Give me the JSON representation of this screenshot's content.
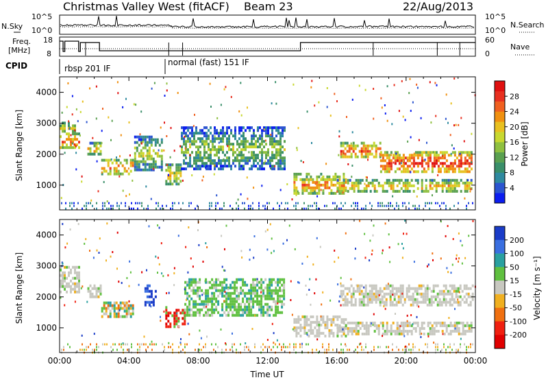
{
  "header": {
    "station": "Christmas Valley West (fitACF)",
    "beam": "Beam 23",
    "date": "22/Aug/2013"
  },
  "summary_panels": {
    "nsky_label": "N.Sky",
    "nsearch_label": "N.Search",
    "noise_ticks": [
      "10^5",
      "10^0"
    ],
    "noise_ticks_right": [
      "10^5",
      "10^0"
    ],
    "freq_label_line1": "Freq.",
    "freq_label_line2": "[MHz]",
    "freq_ticks": [
      "18",
      "8"
    ],
    "nave_label": "Nave",
    "nave_ticks": [
      "60",
      "0"
    ],
    "cpid_label": "CPID",
    "cpid_segments": [
      "rbsp 201 IF",
      "normal (fast) 151 IF"
    ]
  },
  "chart_data": [
    {
      "type": "heatmap",
      "name": "power",
      "ylabel": "Slant Range [km]",
      "yticks": [
        1000,
        2000,
        3000,
        4000
      ],
      "ylim": [
        200,
        4500
      ],
      "colorbar_label": "Power [dB]",
      "colorbar_ticks": [
        4,
        8,
        12,
        16,
        20,
        24,
        28
      ],
      "colorbar_colors": [
        "#0b1df0",
        "#2b55d0",
        "#2f8aa0",
        "#3a8f6a",
        "#5aa050",
        "#8fc040",
        "#c8d830",
        "#e8c020",
        "#f09010",
        "#f06020",
        "#e83020",
        "#e01010"
      ],
      "bands": [
        {
          "t0": 0.0,
          "t1": 1.1,
          "r0": 2200,
          "r1": 2700,
          "level": 0.55
        },
        {
          "t0": 0.0,
          "t1": 0.9,
          "r0": 2700,
          "r1": 3050,
          "level": 0.25
        },
        {
          "t0": 1.6,
          "t1": 2.4,
          "r0": 2000,
          "r1": 2400,
          "level": 0.35
        },
        {
          "t0": 2.4,
          "t1": 4.2,
          "r0": 1400,
          "r1": 1850,
          "level": 0.6
        },
        {
          "t0": 4.3,
          "t1": 5.9,
          "r0": 1500,
          "r1": 2600,
          "level": 0.15
        },
        {
          "t0": 6.1,
          "t1": 7.0,
          "r0": 1000,
          "r1": 1700,
          "level": 0.3
        },
        {
          "t0": 7.0,
          "t1": 13.0,
          "r0": 1500,
          "r1": 2900,
          "level": 0.05
        },
        {
          "t0": 13.5,
          "t1": 16.5,
          "r0": 700,
          "r1": 1400,
          "level": 0.45
        },
        {
          "t0": 16.0,
          "t1": 23.8,
          "r0": 800,
          "r1": 1200,
          "level": 0.35
        },
        {
          "t0": 16.2,
          "t1": 18.5,
          "r0": 1900,
          "r1": 2400,
          "level": 0.6
        },
        {
          "t0": 18.5,
          "t1": 23.8,
          "r0": 1400,
          "r1": 2100,
          "level": 0.7
        }
      ],
      "noise_floor": {
        "r0": 200,
        "r1": 450
      }
    },
    {
      "type": "heatmap",
      "name": "velocity",
      "xlabel": "Time UT",
      "ylabel": "Slant Range [km]",
      "xticks": [
        "00:00",
        "04:00",
        "08:00",
        "12:00",
        "16:00",
        "20:00",
        "00:00"
      ],
      "xtick_hours": [
        0,
        4,
        8,
        12,
        16,
        20,
        24
      ],
      "yticks": [
        1000,
        2000,
        3000,
        4000
      ],
      "ylim": [
        200,
        4500
      ],
      "colorbar_label": "Velocity [m s⁻¹]",
      "colorbar_ticks": [
        "200",
        "100",
        "50",
        "15",
        "-15",
        "-50",
        "-100",
        "-200"
      ],
      "colorbar_colors": [
        "#1a3cc8",
        "#3a6fe0",
        "#2aa0a0",
        "#60c040",
        "#c8c8c0",
        "#f0b020",
        "#f07010",
        "#f02010",
        "#e00000"
      ],
      "bands": [
        {
          "t0": 0.0,
          "t1": 1.1,
          "r0": 2200,
          "r1": 3000,
          "cls": "gray"
        },
        {
          "t0": 1.6,
          "t1": 2.4,
          "r0": 2000,
          "r1": 2400,
          "cls": "gray"
        },
        {
          "t0": 2.4,
          "t1": 4.2,
          "r0": 1400,
          "r1": 1850,
          "cls": "mixed"
        },
        {
          "t0": 4.9,
          "t1": 5.6,
          "r0": 1700,
          "r1": 2400,
          "cls": "blue"
        },
        {
          "t0": 6.1,
          "t1": 7.2,
          "r0": 1000,
          "r1": 1700,
          "cls": "mixed_red"
        },
        {
          "t0": 7.2,
          "t1": 13.0,
          "r0": 1400,
          "r1": 2600,
          "cls": "green"
        },
        {
          "t0": 13.5,
          "t1": 16.5,
          "r0": 700,
          "r1": 1400,
          "cls": "gray"
        },
        {
          "t0": 16.0,
          "t1": 23.8,
          "r0": 800,
          "r1": 1200,
          "cls": "gray"
        },
        {
          "t0": 16.2,
          "t1": 23.8,
          "r0": 1700,
          "r1": 2400,
          "cls": "gray"
        }
      ],
      "noise_floor": {
        "r0": 200,
        "r1": 500
      }
    }
  ]
}
